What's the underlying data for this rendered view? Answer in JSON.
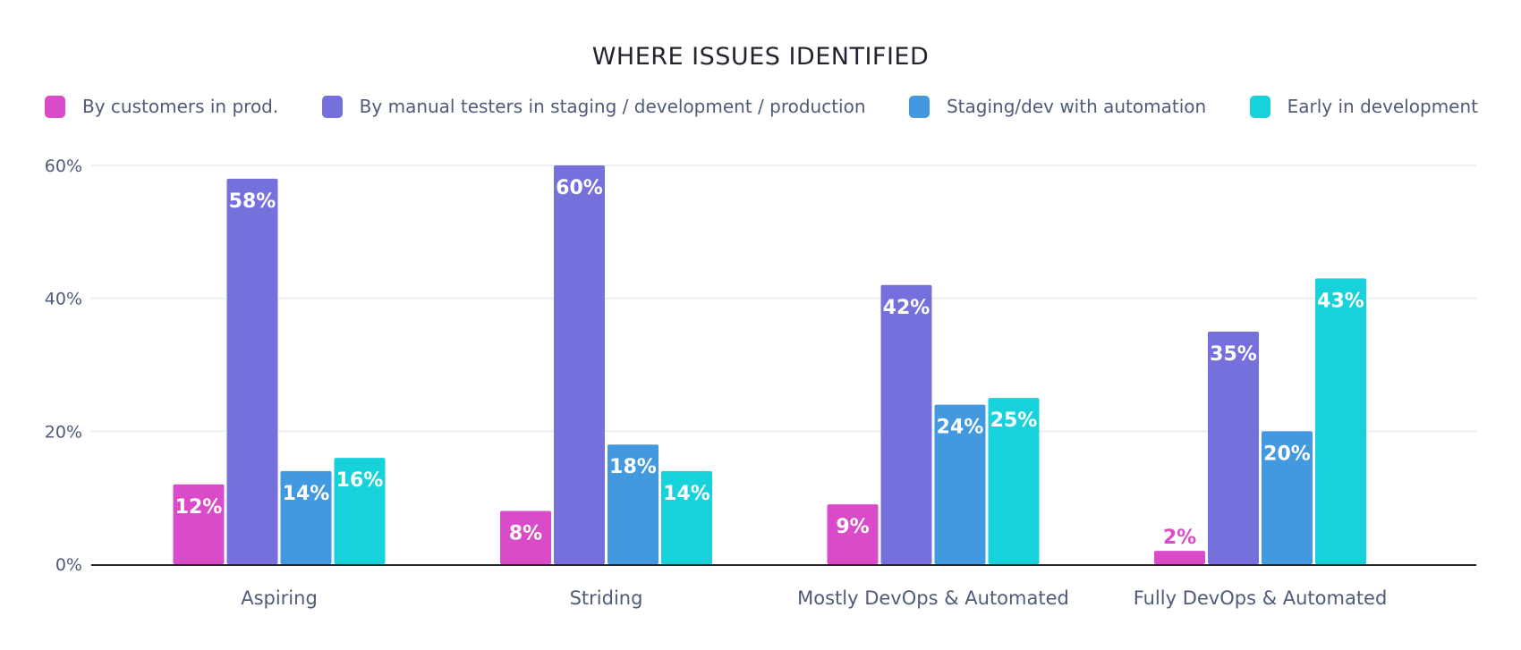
{
  "chart_data": {
    "type": "bar",
    "title": "WHERE ISSUES IDENTIFIED",
    "xlabel": "",
    "ylabel": "",
    "ylim": [
      0,
      60
    ],
    "yticks": [
      0,
      20,
      40,
      60
    ],
    "ytick_labels": [
      "0%",
      "20%",
      "40%",
      "60%"
    ],
    "grid": true,
    "legend_position": "top",
    "categories": [
      "Aspiring",
      "Striding",
      "Mostly DevOps & Automated",
      "Fully DevOps & Automated"
    ],
    "series": [
      {
        "name": "By customers in prod.",
        "color": "#d94bc9",
        "values": [
          12,
          8,
          9,
          2
        ],
        "labels": [
          "12%",
          "8%",
          "9%",
          "2%"
        ]
      },
      {
        "name": "By manual testers in staging / development / production",
        "color": "#7570db",
        "values": [
          58,
          60,
          42,
          35
        ],
        "labels": [
          "58%",
          "60%",
          "42%",
          "35%"
        ]
      },
      {
        "name": "Staging/dev with automation",
        "color": "#4399df",
        "values": [
          14,
          18,
          24,
          20
        ],
        "labels": [
          "14%",
          "18%",
          "24%",
          "20%"
        ]
      },
      {
        "name": "Early in development",
        "color": "#18d2db",
        "values": [
          16,
          14,
          25,
          43
        ],
        "labels": [
          "16%",
          "14%",
          "25%",
          "43%"
        ]
      }
    ]
  },
  "colors": {
    "text": "#4f5b78",
    "title": "#22252e",
    "grid": "#e9ecf2",
    "axis": "#22252e",
    "label_on_bar": "#ffffff"
  }
}
